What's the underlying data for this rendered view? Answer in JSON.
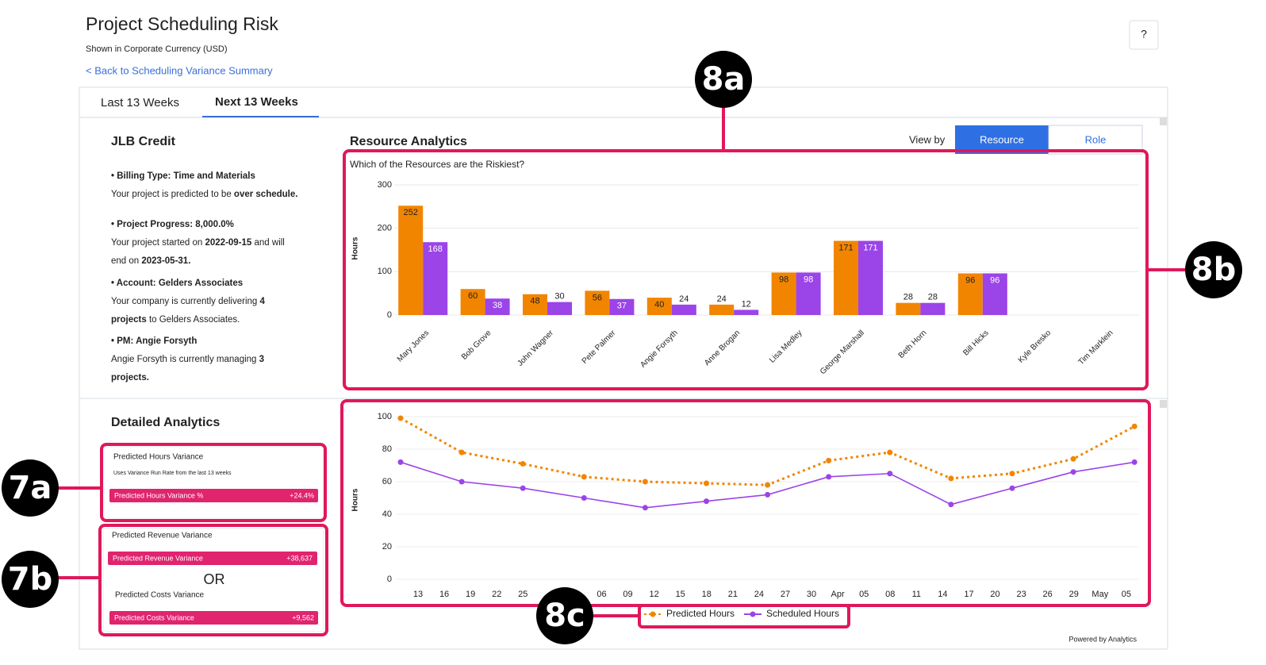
{
  "header": {
    "title": "Project Scheduling Risk",
    "subtitle": "Shown in Corporate Currency (USD)",
    "back_link": "< Back to Scheduling Variance Summary",
    "help": "?"
  },
  "tabs": {
    "items": [
      "Last 13 Weeks",
      "Next 13 Weeks"
    ],
    "active": 1
  },
  "project": {
    "name": "JLB Credit",
    "items": [
      {
        "heading": "• Billing Type: Time and Materials",
        "lines": [
          [
            {
              "text": "Your project is predicted to be "
            },
            {
              "text": "over schedule.",
              "bold": true
            }
          ]
        ]
      },
      {
        "heading": "• Project Progress: 8,000.0%",
        "lines": [
          [
            {
              "text": "Your project started on "
            },
            {
              "text": "2022-09-15",
              "bold": true
            },
            {
              "text": " and will"
            }
          ],
          [
            {
              "text": "end on "
            },
            {
              "text": "2023-05-31.",
              "bold": true
            }
          ]
        ]
      },
      {
        "heading": "• Account: Gelders Associates",
        "lines": [
          [
            {
              "text": "Your company is currently delivering "
            },
            {
              "text": "4",
              "bold": true
            }
          ],
          [
            {
              "text": "projects",
              "bold": true
            },
            {
              "text": " to Gelders Associates."
            }
          ]
        ]
      },
      {
        "heading": "• PM: Angie Forsyth",
        "lines": [
          [
            {
              "text": "Angie Forsyth is currently managing "
            },
            {
              "text": "3",
              "bold": true
            }
          ],
          [
            {
              "text": "projects.",
              "bold": true
            }
          ]
        ]
      }
    ]
  },
  "resource_analytics": {
    "title": "Resource Analytics",
    "view_by": "View by",
    "options": [
      "Resource",
      "Role"
    ],
    "active": 0
  },
  "detailed_analytics": {
    "title": "Detailed Analytics",
    "cards": [
      {
        "title": "Predicted Hours Variance",
        "note": "Uses Variance Run Rate from the last 13 weeks",
        "metric": {
          "label": "Predicted Hours Variance %",
          "value": "+24.4%"
        }
      },
      {
        "title": "Predicted Revenue Variance",
        "metric": {
          "label": "Predicted Revenue Variance",
          "value": "+38,637"
        },
        "separator": "OR",
        "title_2": "Predicted Costs Variance",
        "metric_2": {
          "label": "Predicted Costs Variance",
          "value": "+9,562"
        }
      }
    ]
  },
  "chart_data": [
    {
      "type": "bar",
      "subtitle": "Which of the Resources are the Riskiest?",
      "y_label": "Hours",
      "categories": [
        "Mary Jones",
        "Bob Grove",
        "John Wagner",
        "Pete Palmer",
        "Angie Forsyth",
        "Anne Brogan",
        "Lisa Medley",
        "George Marshall",
        "Beth Horn",
        "Bill Hicks",
        "Kyle Bresko",
        "Tim Marklein"
      ],
      "series": [
        {
          "color": "#f28500",
          "values": [
            252,
            60,
            48,
            56,
            40,
            24,
            98,
            171,
            28,
            96,
            null,
            null
          ]
        },
        {
          "color": "#9b44e8",
          "values": [
            168,
            38,
            30,
            37,
            24,
            12,
            98,
            171,
            28,
            96,
            null,
            null
          ]
        }
      ],
      "ylim": [
        0,
        300
      ],
      "yticks": [
        0,
        100,
        200,
        300
      ],
      "grid": true
    },
    {
      "type": "line",
      "y_label": "Hours",
      "x_tick_labels": [
        "13",
        "16",
        "19",
        "22",
        "25",
        null,
        null,
        "06",
        "09",
        "12",
        "15",
        "18",
        "21",
        "24",
        "27",
        "30",
        "Apr",
        "05",
        "08",
        "11",
        "14",
        "17",
        "20",
        "23",
        "26",
        "29",
        "May",
        "05"
      ],
      "series": [
        {
          "name": "Predicted Hours",
          "color": "#f28500",
          "dashed": true,
          "values": [
            99,
            78,
            71,
            63,
            60,
            59,
            58,
            73,
            78,
            62,
            65,
            74,
            94
          ]
        },
        {
          "name": "Scheduled Hours",
          "color": "#9b44e8",
          "dashed": false,
          "values": [
            72,
            60,
            56,
            50,
            44,
            48,
            52,
            63,
            65,
            46,
            56,
            66,
            72
          ]
        }
      ],
      "ylim": [
        0,
        100
      ],
      "yticks": [
        0,
        20,
        40,
        60,
        80,
        100
      ],
      "grid": true,
      "legend": "bottom"
    }
  ],
  "annotations": [
    "7a",
    "7b",
    "8a",
    "8b",
    "8c"
  ],
  "footer": "Powered by Analytics"
}
